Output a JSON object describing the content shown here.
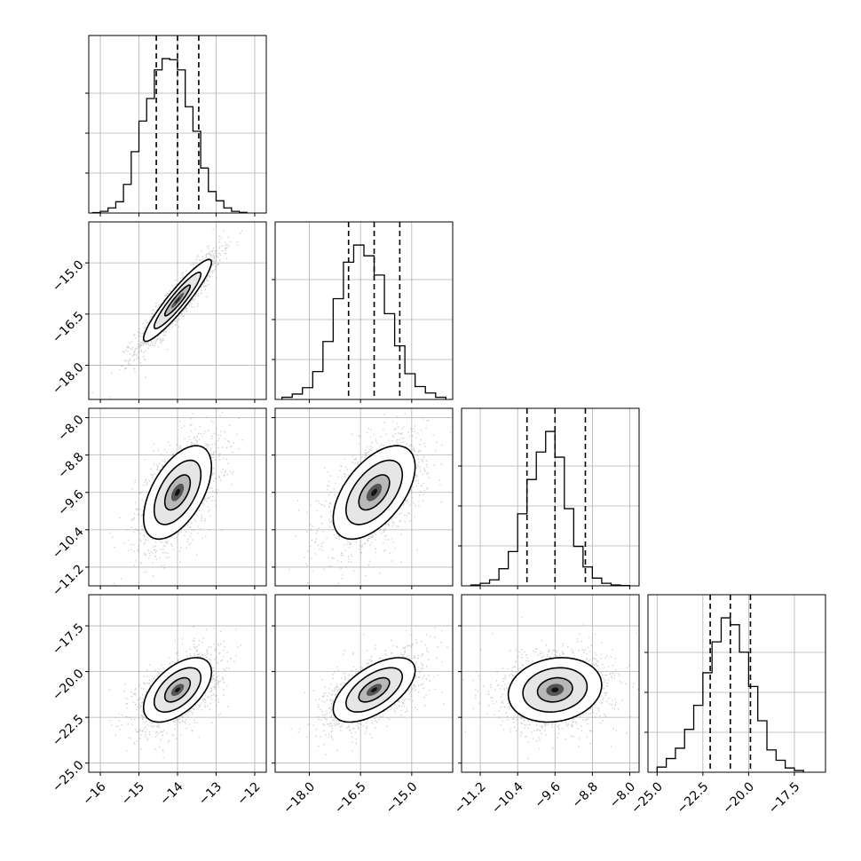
{
  "chart_data": {
    "type": "corner",
    "parameters": [
      {
        "range": [
          -16.3,
          -11.7
        ],
        "ticks": [
          "−16",
          "−15",
          "−14",
          "−13",
          "−12"
        ],
        "tick_values": [
          -16,
          -15,
          -14,
          -13,
          -12
        ],
        "median": -14.0,
        "quantiles_16_84": [
          -14.55,
          -13.45
        ],
        "histogram": {
          "bin_edges": [
            -16.2,
            -16.0,
            -15.8,
            -15.6,
            -15.4,
            -15.2,
            -15.0,
            -14.8,
            -14.6,
            -14.4,
            -14.2,
            -14.0,
            -13.8,
            -13.6,
            -13.4,
            -13.2,
            -13.0,
            -12.8,
            -12.6,
            -12.4,
            -12.2
          ],
          "counts": [
            2,
            8,
            25,
            55,
            140,
            300,
            450,
            560,
            700,
            755,
            750,
            700,
            520,
            400,
            220,
            105,
            60,
            25,
            8,
            3
          ]
        }
      },
      {
        "range": [
          -19.0,
          -13.8
        ],
        "ticks": [
          "−18.0",
          "−16.5",
          "−15.0"
        ],
        "tick_values": [
          -18.0,
          -16.5,
          -15.0
        ],
        "median": -16.1,
        "quantiles_16_84": [
          -16.85,
          -15.35
        ],
        "histogram": {
          "bin_edges": [
            -18.8,
            -18.5,
            -18.2,
            -17.9,
            -17.6,
            -17.3,
            -17.0,
            -16.7,
            -16.4,
            -16.1,
            -15.8,
            -15.5,
            -15.2,
            -14.9,
            -14.6,
            -14.3,
            -14.0
          ],
          "counts": [
            10,
            25,
            55,
            130,
            270,
            470,
            640,
            720,
            670,
            580,
            400,
            250,
            120,
            60,
            30,
            10
          ]
        },
        "yaxis_in_row": {
          "range": [
            -19.0,
            -13.8
          ],
          "ticks": [
            "−18.0",
            "−16.5",
            "−15.0"
          ],
          "tick_values": [
            -18.0,
            -16.5,
            -15.0
          ]
        }
      },
      {
        "range": [
          -11.6,
          -7.8
        ],
        "ticks": [
          "−11.2",
          "−10.4",
          "−9.6",
          "−8.8",
          "−8.0"
        ],
        "tick_values": [
          -11.2,
          -10.4,
          -9.6,
          -8.8,
          -8.0
        ],
        "median": -9.6,
        "quantiles_16_84": [
          -10.2,
          -8.95
        ],
        "histogram": {
          "bin_edges": [
            -11.4,
            -11.2,
            -11.0,
            -10.8,
            -10.6,
            -10.4,
            -10.2,
            -10.0,
            -9.8,
            -9.6,
            -9.4,
            -9.2,
            -9.0,
            -8.8,
            -8.6,
            -8.4,
            -8.2,
            -8.0
          ],
          "counts": [
            5,
            15,
            35,
            100,
            200,
            420,
            620,
            780,
            900,
            750,
            450,
            230,
            110,
            45,
            15,
            5,
            2
          ]
        },
        "yaxis_in_row": {
          "range": [
            -11.6,
            -7.8
          ],
          "ticks": [
            "−11.2",
            "−10.4",
            "−9.6",
            "−8.8",
            "−8.0"
          ],
          "tick_values": [
            -11.2,
            -10.4,
            -9.6,
            -8.8,
            -8.0
          ]
        }
      },
      {
        "range": [
          -25.5,
          -15.8
        ],
        "ticks": [
          "−25.0",
          "−22.5",
          "−20.0",
          "−17.5"
        ],
        "tick_values": [
          -25.0,
          -22.5,
          -20.0,
          -17.5
        ],
        "median": -21.0,
        "quantiles_16_84": [
          -22.1,
          -19.9
        ],
        "histogram": {
          "bin_edges": [
            -25.0,
            -24.5,
            -24.0,
            -23.5,
            -23.0,
            -22.5,
            -22.0,
            -21.5,
            -21.0,
            -20.5,
            -20.0,
            -19.5,
            -19.0,
            -18.5,
            -18.0,
            -17.5,
            -17.0
          ],
          "counts": [
            30,
            80,
            140,
            250,
            390,
            580,
            760,
            900,
            860,
            700,
            500,
            300,
            130,
            70,
            25,
            10
          ]
        },
        "yaxis_in_row": {
          "range": [
            -25.5,
            -15.8
          ],
          "ticks": [
            "−25.0",
            "−22.5",
            "−20.0",
            "−17.5"
          ],
          "tick_values": [
            -25.0,
            -22.5,
            -20.0,
            -17.5
          ]
        }
      }
    ],
    "correlations": {
      "1,0": 0.93,
      "2,0": 0.55,
      "2,1": 0.55,
      "3,0": 0.55,
      "3,1": 0.6,
      "3,2": 0.15
    },
    "contour_levels_sigma": [
      0.6,
      1.1,
      1.6
    ],
    "grid": true,
    "colors": {
      "line": "#000000",
      "grid": "#b0b0b0",
      "points": "#7f7f7f"
    }
  }
}
